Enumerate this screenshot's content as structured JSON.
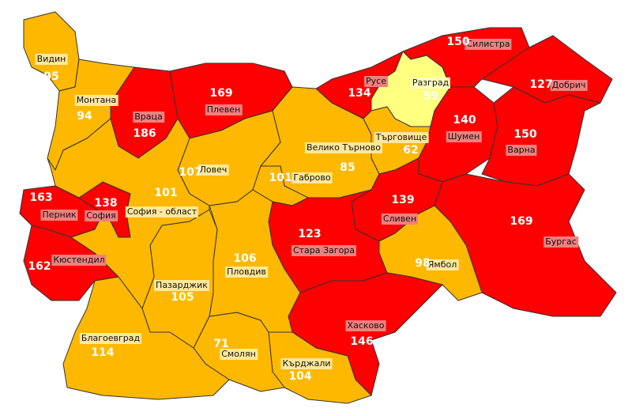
{
  "colors": {
    "high": "#ff0000",
    "medium": "#ffb800",
    "low": "#ffff80",
    "label_bg_high": "#f08080",
    "label_bg_medium": "#ffe89a",
    "label_bg_low": "#ffffc0"
  },
  "provinces": [
    {
      "name": "Видин",
      "value": "95",
      "level": "medium"
    },
    {
      "name": "Монтана",
      "value": "94",
      "level": "medium"
    },
    {
      "name": "Враца",
      "value": "186",
      "level": "high"
    },
    {
      "name": "Плевен",
      "value": "169",
      "level": "high"
    },
    {
      "name": "Ловеч",
      "value": "107",
      "level": "medium"
    },
    {
      "name": "Велико Търново",
      "value": "85",
      "level": "medium"
    },
    {
      "name": "Габрово",
      "value": "101",
      "level": "medium"
    },
    {
      "name": "Русе",
      "value": "134",
      "level": "high"
    },
    {
      "name": "Разград",
      "value": "59",
      "level": "low"
    },
    {
      "name": "Силистра",
      "value": "150",
      "level": "high"
    },
    {
      "name": "Добрич",
      "value": "127",
      "level": "high"
    },
    {
      "name": "Търговище",
      "value": "62",
      "level": "medium"
    },
    {
      "name": "Шумен",
      "value": "140",
      "level": "high"
    },
    {
      "name": "Варна",
      "value": "150",
      "level": "high"
    },
    {
      "name": "Бургас",
      "value": "169",
      "level": "high"
    },
    {
      "name": "Сливен",
      "value": "139",
      "level": "high"
    },
    {
      "name": "Ямбол",
      "value": "98",
      "level": "medium"
    },
    {
      "name": "Стара Загора",
      "value": "123",
      "level": "high"
    },
    {
      "name": "Хасково",
      "value": "146",
      "level": "high"
    },
    {
      "name": "Кърджали",
      "value": "104",
      "level": "medium"
    },
    {
      "name": "Смолян",
      "value": "71",
      "level": "medium"
    },
    {
      "name": "Пловдив",
      "value": "106",
      "level": "medium"
    },
    {
      "name": "Пазарджик",
      "value": "105",
      "level": "medium"
    },
    {
      "name": "Благоевград",
      "value": "114",
      "level": "medium"
    },
    {
      "name": "Кюстендил",
      "value": "162",
      "level": "high"
    },
    {
      "name": "Перник",
      "value": "163",
      "level": "high"
    },
    {
      "name": "София",
      "value": "138",
      "level": "high"
    },
    {
      "name": "София - област",
      "value": "101",
      "level": "medium"
    }
  ]
}
